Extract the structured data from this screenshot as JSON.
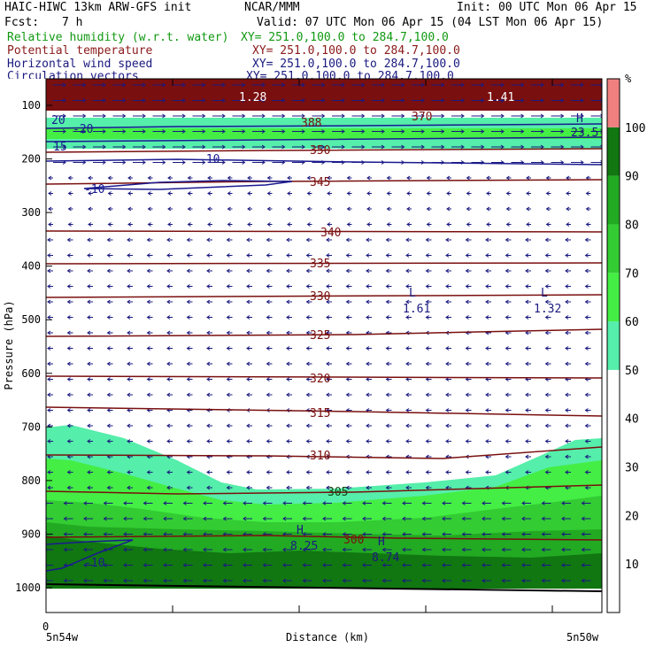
{
  "header": {
    "model": "HAIC-HIWC 13km ARW-GFS init",
    "org": "NCAR/MMM",
    "init": "Init: 00 UTC Mon 06 Apr 15",
    "fcst_label": "Fcst:",
    "fcst_value": "7 h",
    "valid": "Valid: 07 UTC Mon 06 Apr 15 (04 LST Mon 06 Apr 15)",
    "fields": [
      {
        "name": "Relative humidity (w.r.t. water)",
        "xy": "XY= 251.0,100.0 to 284.7,100.0",
        "color": "#119911"
      },
      {
        "name": "Potential temperature",
        "xy": "XY= 251.0,100.0 to 284.7,100.0",
        "color": "#8b1a1a"
      },
      {
        "name": "Horizontal wind speed",
        "xy": "XY= 251.0,100.0 to 284.7,100.0",
        "color": "#1a1a80"
      },
      {
        "name": "Circulation vectors",
        "xy": "XY= 251.0,100.0 to 284.7,100.0",
        "color": "#1a1a80"
      }
    ]
  },
  "chart_data": {
    "type": "heatmap",
    "ylabel": "Pressure (hPa)",
    "xlabel": "Distance (km)",
    "x_start_label": "5n54w",
    "x_end_label": "5n50w",
    "x_zero": "0",
    "y_ticks": [
      100,
      200,
      300,
      400,
      500,
      600,
      700,
      800,
      900,
      1000
    ],
    "ylim": [
      1050,
      70
    ],
    "colorbar": {
      "unit": "%",
      "ticks": [
        10,
        20,
        30,
        40,
        50,
        60,
        70,
        80,
        90,
        100
      ],
      "bands": [
        {
          "from": 0,
          "to": 50,
          "color": "#ffffff"
        },
        {
          "from": 50,
          "to": 60,
          "color": "#55eeaa"
        },
        {
          "from": 60,
          "to": 70,
          "color": "#44ee44"
        },
        {
          "from": 70,
          "to": 80,
          "color": "#33cc33"
        },
        {
          "from": 80,
          "to": 90,
          "color": "#22aa22"
        },
        {
          "from": 90,
          "to": 100,
          "color": "#117711"
        },
        {
          "from": 100,
          "to": 110,
          "color": "#f08080"
        }
      ]
    },
    "theta_contours": [
      {
        "label": "350"
      },
      {
        "label": "345"
      },
      {
        "label": "340"
      },
      {
        "label": "335"
      },
      {
        "label": "330"
      },
      {
        "label": "325"
      },
      {
        "label": "320"
      },
      {
        "label": "315"
      },
      {
        "label": "310"
      },
      {
        "label": "305"
      },
      {
        "label": "300"
      },
      {
        "label": "388"
      },
      {
        "label": "370"
      }
    ],
    "wind_labels": [
      "-10",
      "-10",
      "-10",
      "-20",
      "20",
      "15",
      "10"
    ],
    "extrema": [
      {
        "type": "L",
        "value": "1.61"
      },
      {
        "type": "L",
        "value": "1.32"
      },
      {
        "type": "H",
        "value": "8.25"
      },
      {
        "type": "H",
        "value": "8.74"
      },
      {
        "type": "H",
        "value": "23.5"
      },
      {
        "type": "L",
        "value": "1.41"
      },
      {
        "type": "H",
        "value": "1.28"
      }
    ]
  }
}
